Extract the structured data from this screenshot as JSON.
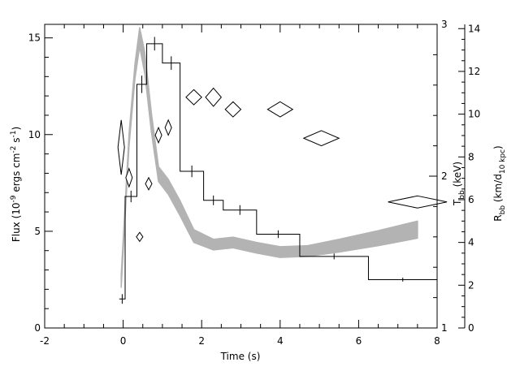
{
  "chart_data": {
    "type": "line",
    "xlabel": "Time (s)",
    "xlim": [
      -2,
      8
    ],
    "x_ticks": [
      "-2",
      "0",
      "2",
      "4",
      "6",
      "8"
    ],
    "axes": {
      "left": {
        "label_parts": [
          "Flux (10",
          "-9",
          " ergs cm",
          "-2",
          " s",
          "-1",
          ")"
        ],
        "lim": [
          0,
          15.7
        ],
        "ticks": [
          "0",
          "5",
          "10",
          "15"
        ]
      },
      "right_temperature": {
        "label_main": "T",
        "label_sub": "bb",
        "label_unit": " (keV)",
        "lim": [
          1,
          3
        ],
        "ticks": [
          "1",
          "2",
          "3"
        ]
      },
      "right_radius": {
        "label_main": "R",
        "label_sub": "bb",
        "label_unit_a": " (km/d",
        "label_unit_sub": "10 kpc",
        "label_unit_b": ")",
        "lim": [
          0,
          14.2
        ],
        "ticks": [
          "0",
          "2",
          "4",
          "6",
          "8",
          "10",
          "12",
          "14"
        ]
      }
    },
    "series": [
      {
        "type": "step",
        "color": "#000000",
        "bins": [
          {
            "x0": -0.1,
            "x1": 0.05,
            "flux": 1.5,
            "err": 0.25
          },
          {
            "x0": 0.05,
            "x1": 0.35,
            "flux": 6.8,
            "err": 0.3
          },
          {
            "x0": 0.35,
            "x1": 0.6,
            "flux": 12.6,
            "err": 0.45
          },
          {
            "x0": 0.6,
            "x1": 1.0,
            "flux": 14.7,
            "err": 0.35
          },
          {
            "x0": 1.0,
            "x1": 1.45,
            "flux": 13.7,
            "err": 0.35
          },
          {
            "x0": 1.45,
            "x1": 2.05,
            "flux": 8.1,
            "err": 0.3
          },
          {
            "x0": 2.05,
            "x1": 2.55,
            "flux": 6.6,
            "err": 0.25
          },
          {
            "x0": 2.55,
            "x1": 3.4,
            "flux": 6.1,
            "err": 0.25
          },
          {
            "x0": 3.4,
            "x1": 4.5,
            "flux": 4.85,
            "err": 0.2
          },
          {
            "x0": 4.5,
            "x1": 6.25,
            "flux": 3.7,
            "err": 0.15
          },
          {
            "x0": 6.25,
            "x1": 8.0,
            "flux": 2.5,
            "err": 0.1
          }
        ]
      },
      {
        "type": "band",
        "color": "#b3b3b3",
        "points": [
          {
            "t": -0.05,
            "r": 2.2,
            "w": 0.3
          },
          {
            "t": 0.15,
            "r": 8.8,
            "w": 0.3
          },
          {
            "t": 0.3,
            "r": 12.0,
            "w": 0.35
          },
          {
            "t": 0.42,
            "r": 13.6,
            "w": 0.45
          },
          {
            "t": 0.55,
            "r": 12.4,
            "w": 0.5
          },
          {
            "t": 0.72,
            "r": 9.6,
            "w": 0.45
          },
          {
            "t": 0.9,
            "r": 7.2,
            "w": 0.35
          },
          {
            "t": 1.15,
            "r": 6.6,
            "w": 0.35
          },
          {
            "t": 1.45,
            "r": 5.6,
            "w": 0.35
          },
          {
            "t": 1.8,
            "r": 4.3,
            "w": 0.3
          },
          {
            "t": 2.3,
            "r": 3.9,
            "w": 0.25
          },
          {
            "t": 2.8,
            "r": 4.0,
            "w": 0.25
          },
          {
            "t": 3.4,
            "r": 3.75,
            "w": 0.25
          },
          {
            "t": 4.0,
            "r": 3.55,
            "w": 0.25
          },
          {
            "t": 4.7,
            "r": 3.6,
            "w": 0.25
          },
          {
            "t": 5.5,
            "r": 3.85,
            "w": 0.3
          },
          {
            "t": 6.5,
            "r": 4.2,
            "w": 0.35
          },
          {
            "t": 7.5,
            "r": 4.6,
            "w": 0.4
          }
        ]
      },
      {
        "type": "diamonds",
        "color": "#000000",
        "points": [
          {
            "t": -0.05,
            "dt": 0.07,
            "T": 2.19,
            "dT": 0.18
          },
          {
            "t": 0.15,
            "dt": 0.07,
            "T": 1.99,
            "dT": 0.06
          },
          {
            "t": 0.42,
            "dt": 0.07,
            "T": 1.6,
            "dT": 0.03
          },
          {
            "t": 0.65,
            "dt": 0.07,
            "T": 1.95,
            "dT": 0.04
          },
          {
            "t": 0.9,
            "dt": 0.07,
            "T": 2.27,
            "dT": 0.05
          },
          {
            "t": 1.15,
            "dt": 0.08,
            "T": 2.32,
            "dT": 0.05
          },
          {
            "t": 1.8,
            "dt": 0.2,
            "T": 2.52,
            "dT": 0.05
          },
          {
            "t": 2.3,
            "dt": 0.2,
            "T": 2.52,
            "dT": 0.06
          },
          {
            "t": 2.8,
            "dt": 0.2,
            "T": 2.44,
            "dT": 0.05
          },
          {
            "t": 4.0,
            "dt": 0.32,
            "T": 2.44,
            "dT": 0.05
          },
          {
            "t": 5.05,
            "dt": 0.45,
            "T": 2.25,
            "dT": 0.05
          },
          {
            "t": 7.5,
            "dt": 0.75,
            "T": 1.83,
            "dT": 0.04
          }
        ]
      }
    ]
  }
}
